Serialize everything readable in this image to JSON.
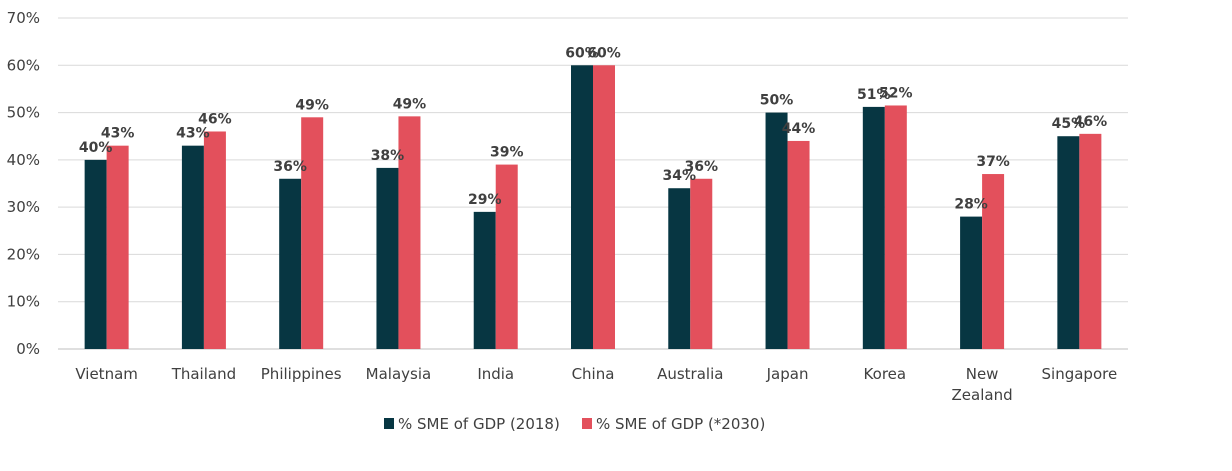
{
  "chart_data": {
    "type": "bar",
    "categories": [
      [
        "Vietnam"
      ],
      [
        "Thailand"
      ],
      [
        "Philippines"
      ],
      [
        "Malaysia"
      ],
      [
        "India"
      ],
      [
        "China"
      ],
      [
        "Australia"
      ],
      [
        "Japan"
      ],
      [
        "Korea"
      ],
      [
        "New",
        "Zealand"
      ],
      [
        "Singapore"
      ]
    ],
    "series": [
      {
        "name": "% SME of GDP (2018)",
        "color": "#073642",
        "values": [
          40,
          43,
          36,
          38.3,
          29,
          60,
          34,
          50,
          51.2,
          28,
          45
        ],
        "labels": [
          "40%",
          "43%",
          "36%",
          "38%",
          "29%",
          "60%",
          "34%",
          "50%",
          "51%",
          "28%",
          "45%"
        ]
      },
      {
        "name": "% SME of GDP (*2030)",
        "color": "#e3505c",
        "values": [
          43,
          46,
          49,
          49.2,
          39,
          60,
          36,
          44,
          51.5,
          37,
          45.5
        ],
        "labels": [
          "43%",
          "46%",
          "49%",
          "49%",
          "39%",
          "60%",
          "36%",
          "44%",
          "52%",
          "37%",
          "46%"
        ]
      }
    ],
    "ylim": [
      0,
      70
    ],
    "yticks": [
      0,
      10,
      20,
      30,
      40,
      50,
      60,
      70
    ],
    "ytick_labels": [
      "0%",
      "10%",
      "20%",
      "30%",
      "40%",
      "50%",
      "60%",
      "70%"
    ],
    "grid": true,
    "legend_position": "bottom-center"
  }
}
